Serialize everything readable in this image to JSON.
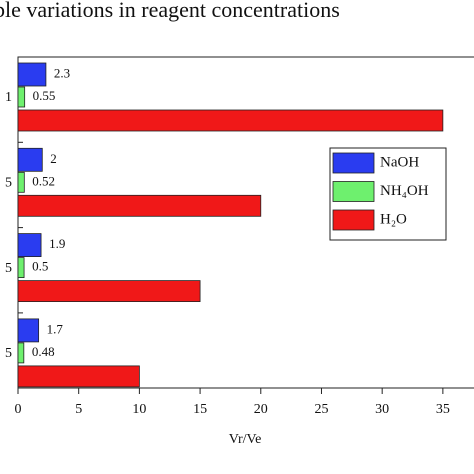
{
  "chart_data": {
    "type": "bar",
    "orientation": "horizontal",
    "title": "ble variations in reagent concentrations",
    "categories": [
      "1",
      "5",
      "5",
      "5"
    ],
    "series": [
      {
        "name": "NaOH",
        "color": "#2a3cf0",
        "values": [
          2.3,
          2,
          1.9,
          1.7
        ],
        "show_labels": true
      },
      {
        "name": "NH₄OH",
        "color": "#6ef06e",
        "values": [
          0.55,
          0.52,
          0.5,
          0.48
        ],
        "show_labels": true
      },
      {
        "name": "H₂O",
        "color": "#f01818",
        "values": [
          35,
          20,
          15,
          10
        ],
        "show_labels": false
      }
    ],
    "xlabel": "Vr/Ve",
    "xlim": [
      0,
      37.4
    ],
    "xticks": [
      0,
      5,
      10,
      15,
      20,
      25,
      30,
      35
    ],
    "legend": "right"
  }
}
